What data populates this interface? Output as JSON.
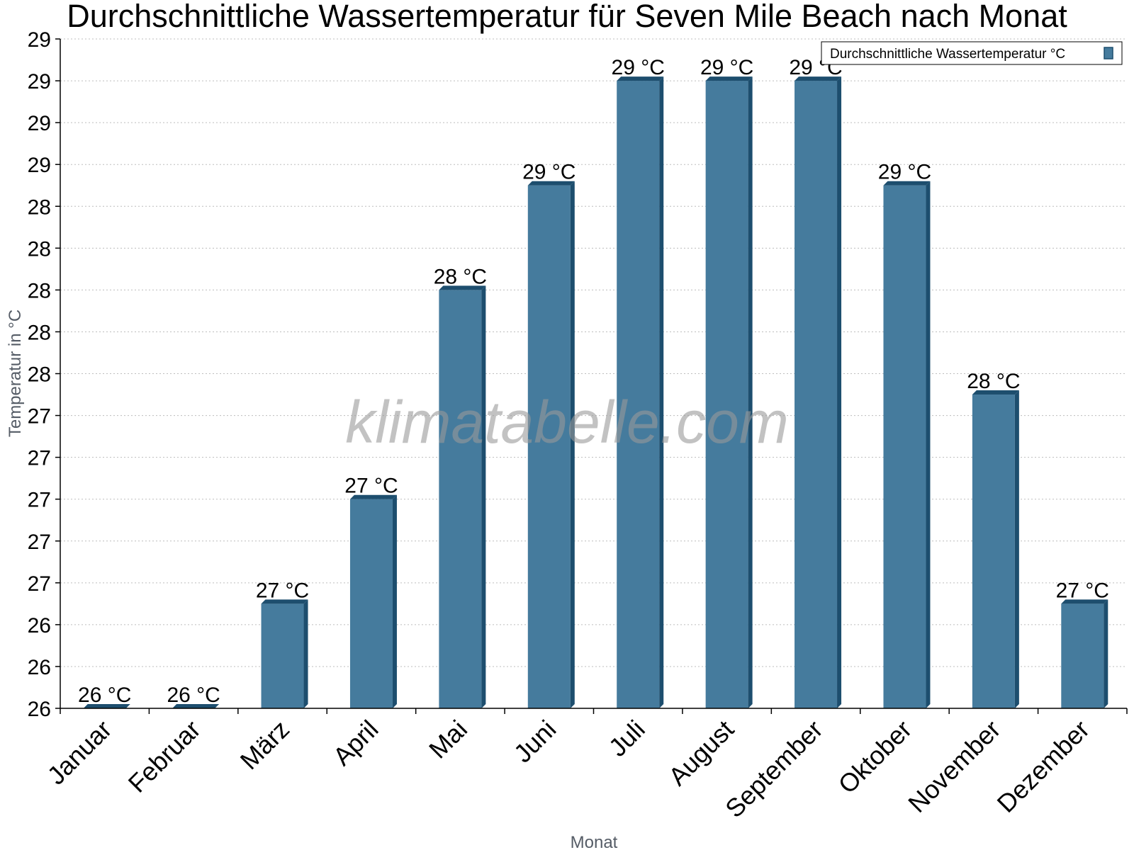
{
  "chart_data": {
    "type": "bar",
    "title": "Durchschnittliche Wassertemperatur für Seven Mile Beach nach Monat",
    "xlabel": "Monat",
    "ylabel": "Temperatur in °C",
    "categories": [
      "Januar",
      "Februar",
      "März",
      "April",
      "Mai",
      "Juni",
      "Juli",
      "August",
      "September",
      "Oktober",
      "November",
      "Dezember"
    ],
    "series": [
      {
        "name": "Durchschnittliche Wassertemperatur °C",
        "values": [
          26.0,
          26.0,
          26.5,
          27.0,
          28.0,
          28.5,
          29.0,
          29.0,
          29.0,
          28.5,
          27.5,
          26.5
        ],
        "labels": [
          "26 °C",
          "26 °C",
          "27 °C",
          "27 °C",
          "28 °C",
          "29 °C",
          "29 °C",
          "29 °C",
          "29 °C",
          "29 °C",
          "28 °C",
          "27 °C"
        ]
      }
    ],
    "ylim": [
      26.0,
      29.2
    ],
    "yticks": [
      26.0,
      26.2,
      26.4,
      26.6,
      26.8,
      27.0,
      27.2,
      27.4,
      27.6,
      27.8,
      28.0,
      28.2,
      28.4,
      28.6,
      28.8,
      29.0,
      29.2
    ],
    "ytick_labels": [
      "26",
      "26",
      "26",
      "27",
      "27",
      "27",
      "27",
      "27",
      "28",
      "28",
      "28",
      "28",
      "28",
      "29",
      "29",
      "29",
      "29"
    ],
    "grid": true,
    "legend_position": "top-right",
    "colors": {
      "bar": "#457b9d",
      "bar_edge": "#1d4e6e"
    }
  },
  "watermark": "klimatabelle.com"
}
